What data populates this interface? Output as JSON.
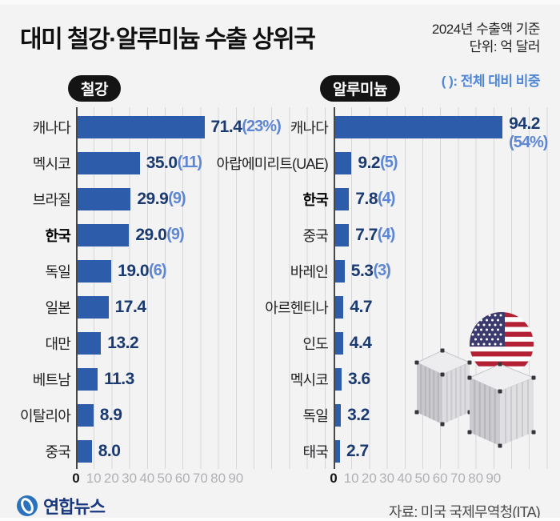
{
  "title": "대미 철강·알루미늄 수출 상위국",
  "meta": {
    "line1": "2024년 수출액 기준",
    "line2": "단위: 억 달러",
    "note": "( ): 전체 대비 비중"
  },
  "colors": {
    "bar": "#2d5caa",
    "value": "#1b3a70",
    "paren": "#5d86d4",
    "note": "#4f86d6",
    "background": "#f3f3f4"
  },
  "axis": {
    "ticks": [
      "0",
      "10",
      "20",
      "30",
      "40",
      "50",
      "60",
      "70",
      "80",
      "90"
    ]
  },
  "charts": [
    {
      "id": "steel",
      "badge": "철강",
      "rows": [
        {
          "label": "캐나다",
          "value": 71.4,
          "value_label": "71.4",
          "paren": "(23%)"
        },
        {
          "label": "멕시코",
          "value": 35.0,
          "value_label": "35.0",
          "paren": "(11)"
        },
        {
          "label": "브라질",
          "value": 29.9,
          "value_label": "29.9",
          "paren": "(9)"
        },
        {
          "label": "한국",
          "value": 29.0,
          "value_label": "29.0",
          "paren": "(9)",
          "bold": true
        },
        {
          "label": "독일",
          "value": 19.0,
          "value_label": "19.0",
          "paren": "(6)"
        },
        {
          "label": "일본",
          "value": 17.4,
          "value_label": "17.4"
        },
        {
          "label": "대만",
          "value": 13.2,
          "value_label": "13.2"
        },
        {
          "label": "베트남",
          "value": 11.3,
          "value_label": "11.3"
        },
        {
          "label": "이탈리아",
          "value": 8.9,
          "value_label": "8.9"
        },
        {
          "label": "중국",
          "value": 8.0,
          "value_label": "8.0"
        }
      ]
    },
    {
      "id": "aluminum",
      "badge": "알루미늄",
      "rows": [
        {
          "label": "캐나다",
          "value": 94.2,
          "value_label": "94.2",
          "paren": "(54%)",
          "paren_below": true
        },
        {
          "label": "아랍에미리트(UAE)",
          "value": 9.2,
          "value_label": "9.2",
          "paren": "(5)"
        },
        {
          "label": "한국",
          "value": 7.8,
          "value_label": "7.8",
          "paren": "(4)",
          "bold": true
        },
        {
          "label": "중국",
          "value": 7.7,
          "value_label": "7.7",
          "paren": "(4)"
        },
        {
          "label": "바레인",
          "value": 5.3,
          "value_label": "5.3",
          "paren": "(3)"
        },
        {
          "label": "아르헨티나",
          "value": 4.7,
          "value_label": "4.7"
        },
        {
          "label": "인도",
          "value": 4.4,
          "value_label": "4.4"
        },
        {
          "label": "멕시코",
          "value": 3.6,
          "value_label": "3.6"
        },
        {
          "label": "독일",
          "value": 3.2,
          "value_label": "3.2"
        },
        {
          "label": "태국",
          "value": 2.7,
          "value_label": "2.7"
        }
      ]
    }
  ],
  "footer": {
    "logo_text": "연합뉴스",
    "source": "자료: 미국 국제무역청(ITA)"
  },
  "chart_data": [
    {
      "type": "bar",
      "orientation": "horizontal",
      "title": "철강",
      "subtitle": "대미 철강·알루미늄 수출 상위국",
      "basis": "2024년 수출액 기준",
      "unit": "억 달러",
      "paren_meaning": "전체 대비 비중(%)",
      "categories": [
        "캐나다",
        "멕시코",
        "브라질",
        "한국",
        "독일",
        "일본",
        "대만",
        "베트남",
        "이탈리아",
        "중국"
      ],
      "values": [
        71.4,
        35.0,
        29.9,
        29.0,
        19.0,
        17.4,
        13.2,
        11.3,
        8.9,
        8.0
      ],
      "share_pct": [
        23,
        11,
        9,
        9,
        6,
        null,
        null,
        null,
        null,
        null
      ],
      "xlim": [
        0,
        90
      ],
      "tick_step": 10,
      "grid": true,
      "legend": "none"
    },
    {
      "type": "bar",
      "orientation": "horizontal",
      "title": "알루미늄",
      "subtitle": "대미 철강·알루미늄 수출 상위국",
      "basis": "2024년 수출액 기준",
      "unit": "억 달러",
      "paren_meaning": "전체 대비 비중(%)",
      "categories": [
        "캐나다",
        "아랍에미리트(UAE)",
        "한국",
        "중국",
        "바레인",
        "아르헨티나",
        "인도",
        "멕시코",
        "독일",
        "태국"
      ],
      "values": [
        94.2,
        9.2,
        7.8,
        7.7,
        5.3,
        4.7,
        4.4,
        3.6,
        3.2,
        2.7
      ],
      "share_pct": [
        54,
        5,
        4,
        4,
        3,
        null,
        null,
        null,
        null,
        null
      ],
      "xlim": [
        0,
        90
      ],
      "tick_step": 10,
      "grid": true,
      "legend": "none"
    }
  ]
}
